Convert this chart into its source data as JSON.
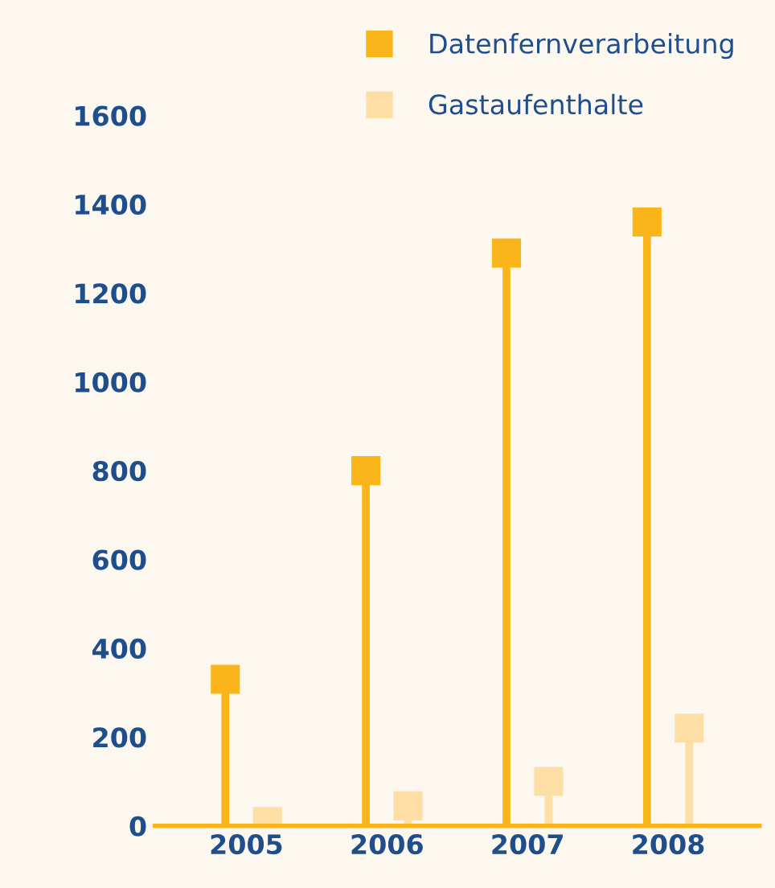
{
  "chart_data": {
    "type": "lollipop",
    "categories": [
      "2005",
      "2006",
      "2007",
      "2008"
    ],
    "series": [
      {
        "name": "Datenfernverarbeitung",
        "color": "#f9b51a",
        "values": [
          330,
          800,
          1290,
          1360
        ]
      },
      {
        "name": "Gastaufenthalte",
        "color": "#fddfa6",
        "values": [
          10,
          45,
          100,
          220
        ]
      }
    ],
    "ylim": [
      0,
      1600
    ],
    "yticks": [
      0,
      200,
      400,
      600,
      800,
      1000,
      1200,
      1400,
      1600
    ],
    "grid": false,
    "legend": "top right",
    "marker": "square"
  }
}
